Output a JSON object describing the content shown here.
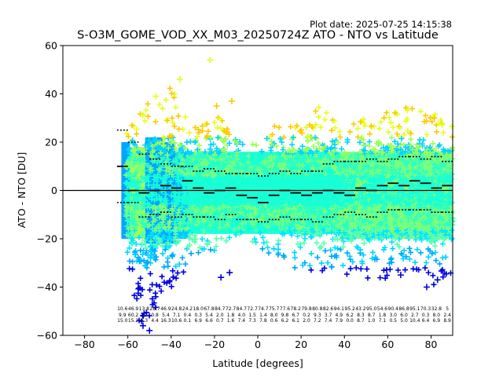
{
  "plot_date": "Plot date: 2025-07-25 14:15:38",
  "chart_data": {
    "type": "scatter",
    "title": "S-O3M_GOME_VOD_XX_M03_20250724Z ATO - NTO vs Latitude",
    "xlabel": "Latitude [degrees]",
    "ylabel": "ATO - NTO [DU]",
    "xlim": [
      -90,
      90
    ],
    "ylim": [
      -60,
      60
    ],
    "xticks": [
      -80,
      -60,
      -40,
      -20,
      0,
      20,
      40,
      60,
      80
    ],
    "xtick_labels": [
      "−80",
      "−60",
      "−40",
      "−20",
      "0",
      "20",
      "40",
      "60",
      "80"
    ],
    "yticks": [
      -60,
      -40,
      -20,
      0,
      20,
      40,
      60
    ],
    "ytick_labels": [
      "−60",
      "−40",
      "−20",
      "0",
      "20",
      "40",
      "60"
    ],
    "grid": false,
    "legend": "none",
    "zero_line": 0,
    "marker": "+",
    "scatter_envelope": [
      {
        "lat": -61,
        "low": -20,
        "high": 25
      },
      {
        "lat": -58,
        "low": -44,
        "high": 30
      },
      {
        "lat": -55,
        "low": -54,
        "high": 33
      },
      {
        "lat": -52,
        "low": -57,
        "high": 35
      },
      {
        "lat": -48,
        "low": -55,
        "high": 39
      },
      {
        "lat": -44,
        "low": -46,
        "high": 38
      },
      {
        "lat": -40,
        "low": -42,
        "high": 44
      },
      {
        "lat": -36,
        "low": -38,
        "high": 35
      },
      {
        "lat": -32,
        "low": -30,
        "high": 30
      },
      {
        "lat": -28,
        "low": -27,
        "high": 28
      },
      {
        "lat": -24,
        "low": -24,
        "high": 28
      },
      {
        "lat": -20,
        "low": -25,
        "high": 30
      },
      {
        "lat": -16,
        "low": -22,
        "high": 31
      },
      {
        "lat": -12,
        "low": -20,
        "high": 23
      },
      {
        "lat": -8,
        "low": -18,
        "high": 20
      },
      {
        "lat": -4,
        "low": -20,
        "high": 19
      },
      {
        "lat": 0,
        "low": -24,
        "high": 20
      },
      {
        "lat": 4,
        "low": -27,
        "high": 23
      },
      {
        "lat": 8,
        "low": -26,
        "high": 28
      },
      {
        "lat": 12,
        "low": -29,
        "high": 28
      },
      {
        "lat": 16,
        "low": -34,
        "high": 33
      },
      {
        "lat": 20,
        "low": -30,
        "high": 30
      },
      {
        "lat": 24,
        "low": -36,
        "high": 33
      },
      {
        "lat": 28,
        "low": -34,
        "high": 36
      },
      {
        "lat": 32,
        "low": -33,
        "high": 34
      },
      {
        "lat": 36,
        "low": -36,
        "high": 30
      },
      {
        "lat": 40,
        "low": -40,
        "high": 22
      },
      {
        "lat": 44,
        "low": -38,
        "high": 28
      },
      {
        "lat": 48,
        "low": -35,
        "high": 30
      },
      {
        "lat": 52,
        "low": -40,
        "high": 34
      },
      {
        "lat": 56,
        "low": -38,
        "high": 30
      },
      {
        "lat": 60,
        "low": -36,
        "high": 35
      },
      {
        "lat": 64,
        "low": -35,
        "high": 32
      },
      {
        "lat": 68,
        "low": -34,
        "high": 35
      },
      {
        "lat": 72,
        "low": -33,
        "high": 36
      },
      {
        "lat": 76,
        "low": -34,
        "high": 34
      },
      {
        "lat": 80,
        "low": -40,
        "high": 33
      },
      {
        "lat": 84,
        "low": -38,
        "high": 31
      },
      {
        "lat": 88,
        "low": -37,
        "high": 31
      }
    ],
    "outliers": [
      {
        "x": -22,
        "y": 54
      },
      {
        "x": -36,
        "y": 46
      },
      {
        "x": -47,
        "y": 39
      },
      {
        "x": -50,
        "y": -58
      },
      {
        "x": -53,
        "y": -56
      },
      {
        "x": -17,
        "y": -36
      },
      {
        "x": -13,
        "y": -34
      },
      {
        "x": -12,
        "y": 37
      },
      {
        "x": -19,
        "y": 35
      },
      {
        "x": 66,
        "y": -35
      },
      {
        "x": 78,
        "y": -40
      },
      {
        "x": 83,
        "y": -37
      }
    ],
    "colorbands": [
      {
        "x0": -63,
        "x1": -59,
        "ylow": -20,
        "yhigh": 20,
        "color": "#00a5ff"
      },
      {
        "x0": -59,
        "x1": -52,
        "ylow": -20,
        "yhigh": 18,
        "color": "#9cff5a"
      },
      {
        "x0": -52,
        "x1": -44,
        "ylow": -22,
        "yhigh": 22,
        "color": "#00a5ff"
      },
      {
        "x0": -44,
        "x1": -38,
        "ylow": -22,
        "yhigh": 20,
        "color": "#00a5ff"
      },
      {
        "x0": -38,
        "x1": -32,
        "ylow": -20,
        "yhigh": 16,
        "color": "#00c8ff"
      },
      {
        "x0": -32,
        "x1": 38,
        "ylow": -18,
        "yhigh": 16,
        "color": "#18ffd6"
      },
      {
        "x0": 38,
        "x1": 90,
        "ylow": -20,
        "yhigh": 16,
        "color": "#7cff7a"
      }
    ],
    "medians": [
      {
        "lat": -62.5,
        "median": 10,
        "q_low": -5,
        "q_high": 25
      },
      {
        "lat": -57.5,
        "median": 0,
        "q_low": -5,
        "q_high": 20
      },
      {
        "lat": -52.5,
        "median": -1,
        "q_low": -11,
        "q_high": 15
      },
      {
        "lat": -47.5,
        "median": 0,
        "q_low": -10,
        "q_high": 13
      },
      {
        "lat": -42.5,
        "median": 2,
        "q_low": -9,
        "q_high": 11
      },
      {
        "lat": -37.5,
        "median": 1,
        "q_low": -11,
        "q_high": 10
      },
      {
        "lat": -32.5,
        "median": 4,
        "q_low": -10,
        "q_high": 10
      },
      {
        "lat": -27.5,
        "median": 1,
        "q_low": -11,
        "q_high": 8
      },
      {
        "lat": -22.5,
        "median": -1,
        "q_low": -11,
        "q_high": 9
      },
      {
        "lat": -17.5,
        "median": 0,
        "q_low": -12,
        "q_high": 8
      },
      {
        "lat": -12.5,
        "median": 1,
        "q_low": -10,
        "q_high": 7
      },
      {
        "lat": -7.5,
        "median": -2,
        "q_low": -12,
        "q_high": 7
      },
      {
        "lat": -2.5,
        "median": -3,
        "q_low": -12,
        "q_high": 7
      },
      {
        "lat": 2.5,
        "median": -5,
        "q_low": -13,
        "q_high": 6
      },
      {
        "lat": 7.5,
        "median": -2,
        "q_low": -12,
        "q_high": 7
      },
      {
        "lat": 12.5,
        "median": 0,
        "q_low": -11,
        "q_high": 8
      },
      {
        "lat": 17.5,
        "median": -1,
        "q_low": -12,
        "q_high": 7
      },
      {
        "lat": 22.5,
        "median": -2,
        "q_low": -12,
        "q_high": 8
      },
      {
        "lat": 27.5,
        "median": -1,
        "q_low": -13,
        "q_high": 8
      },
      {
        "lat": 32.5,
        "median": 0,
        "q_low": -11,
        "q_high": 11
      },
      {
        "lat": 37.5,
        "median": -1,
        "q_low": -10,
        "q_high": 12
      },
      {
        "lat": 42.5,
        "median": -2,
        "q_low": -9,
        "q_high": 12
      },
      {
        "lat": 47.5,
        "median": 1,
        "q_low": -10,
        "q_high": 12
      },
      {
        "lat": 52.5,
        "median": 0,
        "q_low": -11,
        "q_high": 13
      },
      {
        "lat": 57.5,
        "median": 2,
        "q_low": -9,
        "q_high": 12
      },
      {
        "lat": 62.5,
        "median": 3,
        "q_low": -8,
        "q_high": 13
      },
      {
        "lat": 67.5,
        "median": 2,
        "q_low": -8,
        "q_high": 14
      },
      {
        "lat": 72.5,
        "median": 4,
        "q_low": -8,
        "q_high": 14
      },
      {
        "lat": 77.5,
        "median": 3,
        "q_low": -8,
        "q_high": 13
      },
      {
        "lat": 82.5,
        "median": 1,
        "q_low": -9,
        "q_high": 14
      },
      {
        "lat": 87.5,
        "median": 2,
        "q_low": -9,
        "q_high": 12
      }
    ],
    "stats_rows": [
      [
        "10.6",
        "46.9",
        "13.8",
        "28.7",
        "46.9",
        "24.8",
        "24.2",
        "18.0",
        "67.8",
        "84.7",
        "72.7",
        "84.7",
        "72.7",
        "74.7",
        "75.7",
        "77.6",
        "78.2",
        "79.8",
        "80.8",
        "82.6",
        "94.1",
        "95.2",
        "43.2",
        "95.0",
        "54.6",
        "90.4",
        "86.8",
        "95.1",
        "70.3",
        "32.8",
        "5"
      ],
      [
        "9.9",
        "60.2",
        "3.2",
        "0.8",
        "5.4",
        "7.1",
        "0.4",
        "0.3",
        "5.4",
        "2.0",
        "1.8",
        "4.0",
        "1.5",
        "1.4",
        "8.0",
        "9.8",
        "6.7",
        "0.2",
        "9.3",
        "3.7",
        "4.9",
        "6.2",
        "8.3",
        "8.7",
        "1.8",
        "3.0",
        "6.0",
        "2.7",
        "0.3",
        "8.0",
        "2.4"
      ],
      [
        "15.0",
        "15.2",
        "0.3",
        "4.4",
        "16.3",
        "10.6",
        "0.1",
        "6.9",
        "6.6",
        "0.7",
        "1.6",
        "7.4",
        "7.3",
        "7.8",
        "0.6",
        "6.2",
        "6.1",
        "2.0",
        "7.2",
        "7.4",
        "7.9",
        "0.0",
        "8.7",
        "1.0",
        "7.1",
        "0.5",
        "5.0",
        "10.4",
        "6.4",
        "6.9",
        "8.9"
      ]
    ]
  }
}
